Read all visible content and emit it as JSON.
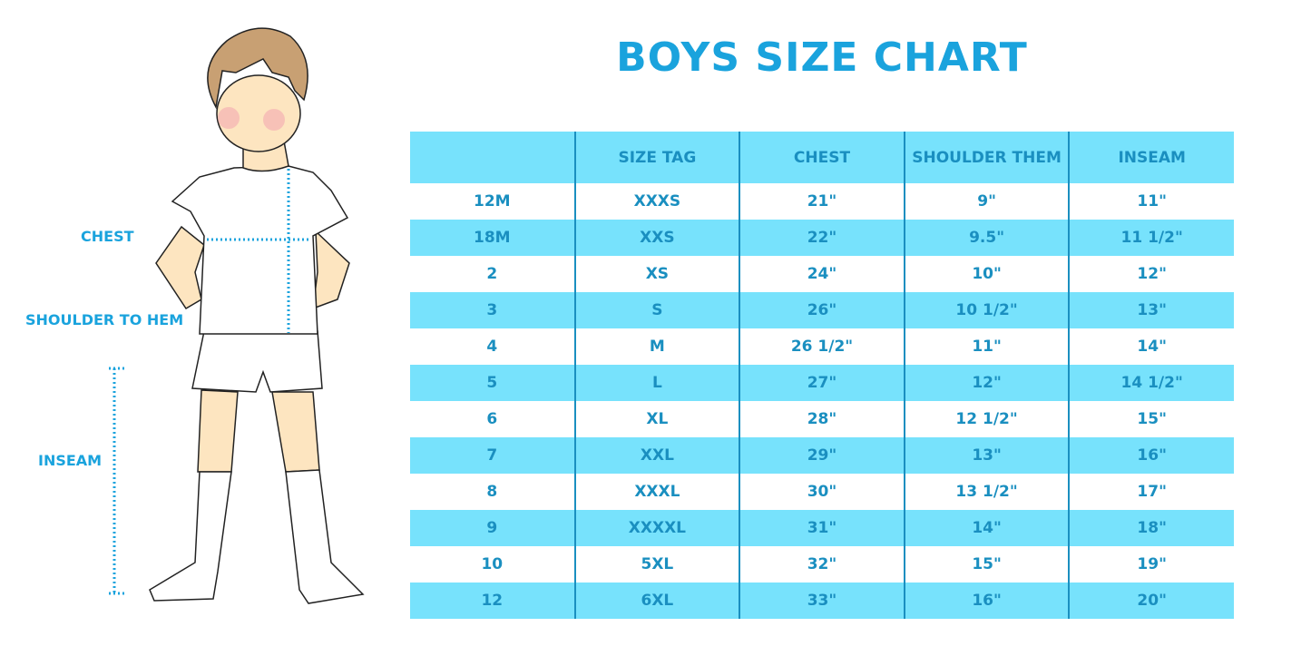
{
  "title": "BOYS SIZE CHART",
  "figure_labels": {
    "chest": "CHEST",
    "shoulder_to_hem": "SHOULDER TO HEM",
    "inseam": "INSEAM"
  },
  "table": {
    "headers": [
      "",
      "SIZE TAG",
      "CHEST",
      "SHOULDER THEM",
      "INSEAM"
    ],
    "rows": [
      [
        "12M",
        "XXXS",
        "21\"",
        "9\"",
        "11\""
      ],
      [
        "18M",
        "XXS",
        "22\"",
        "9.5\"",
        "11 1/2\""
      ],
      [
        "2",
        "XS",
        "24\"",
        "10\"",
        "12\""
      ],
      [
        "3",
        "S",
        "26\"",
        "10 1/2\"",
        "13\""
      ],
      [
        "4",
        "M",
        "26 1/2\"",
        "11\"",
        "14\""
      ],
      [
        "5",
        "L",
        "27\"",
        "12\"",
        "14 1/2\""
      ],
      [
        "6",
        "XL",
        "28\"",
        "12 1/2\"",
        "15\""
      ],
      [
        "7",
        "XXL",
        "29\"",
        "13\"",
        "16\""
      ],
      [
        "8",
        "XXXL",
        "30\"",
        "13 1/2\"",
        "17\""
      ],
      [
        "9",
        "XXXXL",
        "31\"",
        "14\"",
        "18\""
      ],
      [
        "10",
        "5XL",
        "32\"",
        "15\"",
        "19\""
      ],
      [
        "12",
        "6XL",
        "33\"",
        "16\"",
        "20\""
      ]
    ]
  },
  "colors": {
    "accent": "#1aa3dd",
    "row_highlight": "#77e2fc",
    "table_text": "#1a8fc0",
    "skin": "#fde5c0",
    "hair": "#c8a073"
  }
}
